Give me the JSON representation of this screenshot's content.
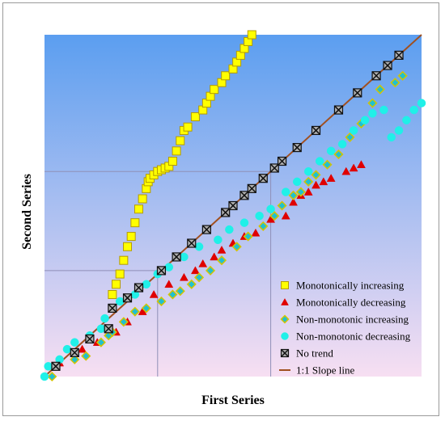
{
  "chart_data": {
    "type": "scatter",
    "xlabel": "First Series",
    "ylabel": "Second Series",
    "xlim": [
      0,
      100
    ],
    "ylim": [
      0,
      100
    ],
    "grid": false,
    "legend_position": "bottom-right",
    "background_gradient": [
      "#5b9ef0",
      "#f7dff2"
    ],
    "reference_lines": {
      "verticals_x": [
        30,
        60
      ],
      "horizontals_y": [
        31,
        60
      ]
    },
    "series": [
      {
        "name": "Monotonically increasing",
        "marker": "square",
        "color": "#ffff00",
        "stroke": "#b59b00",
        "points": [
          [
            18,
            24
          ],
          [
            19,
            27
          ],
          [
            20,
            30
          ],
          [
            21,
            34
          ],
          [
            22,
            38
          ],
          [
            23,
            41
          ],
          [
            24,
            45
          ],
          [
            25,
            49
          ],
          [
            26,
            52
          ],
          [
            27,
            55
          ],
          [
            27.5,
            57
          ],
          [
            28,
            58
          ],
          [
            29,
            59
          ],
          [
            30,
            60
          ],
          [
            31,
            60.5
          ],
          [
            32,
            61
          ],
          [
            33,
            61.5
          ],
          [
            34,
            63
          ],
          [
            35,
            66
          ],
          [
            36,
            69
          ],
          [
            37,
            72
          ],
          [
            38,
            73
          ],
          [
            40,
            76
          ],
          [
            42,
            78
          ],
          [
            43,
            80
          ],
          [
            44,
            82
          ],
          [
            45,
            84
          ],
          [
            47,
            86
          ],
          [
            48,
            88
          ],
          [
            50,
            90
          ],
          [
            51,
            92
          ],
          [
            52,
            94
          ],
          [
            53,
            96
          ],
          [
            54,
            98
          ],
          [
            55,
            100
          ]
        ]
      },
      {
        "name": "Monotonically decreasing",
        "marker": "triangle",
        "color": "#e00000",
        "stroke": "#e00000",
        "points": [
          [
            4,
            4
          ],
          [
            10,
            8
          ],
          [
            14,
            10
          ],
          [
            19,
            13
          ],
          [
            22,
            16
          ],
          [
            26,
            19
          ],
          [
            29,
            24
          ],
          [
            33,
            27
          ],
          [
            37,
            29
          ],
          [
            40,
            31
          ],
          [
            42,
            33
          ],
          [
            45,
            35
          ],
          [
            47,
            37
          ],
          [
            50,
            39
          ],
          [
            53,
            41
          ],
          [
            56,
            42
          ],
          [
            60,
            46
          ],
          [
            64,
            47
          ],
          [
            66,
            51
          ],
          [
            68,
            53
          ],
          [
            70,
            54
          ],
          [
            72,
            56
          ],
          [
            74,
            57
          ],
          [
            76,
            58
          ],
          [
            80,
            60
          ],
          [
            82,
            61
          ],
          [
            84,
            62
          ]
        ]
      },
      {
        "name": "Non-monotonic increasing",
        "marker": "diamond",
        "color": "#20c0d0",
        "stroke": "#d4c400",
        "points": [
          [
            2,
            0
          ],
          [
            8,
            5
          ],
          [
            11,
            6
          ],
          [
            15,
            10
          ],
          [
            17,
            12
          ],
          [
            18,
            13
          ],
          [
            21,
            16
          ],
          [
            24,
            19
          ],
          [
            27,
            20
          ],
          [
            31,
            22
          ],
          [
            34,
            24
          ],
          [
            36,
            25
          ],
          [
            39,
            27
          ],
          [
            41,
            29
          ],
          [
            44,
            31
          ],
          [
            47,
            34
          ],
          [
            51,
            38
          ],
          [
            54,
            41
          ],
          [
            58,
            44
          ],
          [
            61,
            47
          ],
          [
            63,
            50
          ],
          [
            66,
            53
          ],
          [
            68,
            54
          ],
          [
            70,
            57
          ],
          [
            72,
            59
          ],
          [
            75,
            62
          ],
          [
            78,
            65
          ],
          [
            81,
            70
          ],
          [
            84,
            74
          ],
          [
            87,
            80
          ],
          [
            89,
            84
          ],
          [
            93,
            86
          ],
          [
            95,
            88
          ]
        ]
      },
      {
        "name": "Non-monotonic decreasing",
        "marker": "circle",
        "color": "#20f0e8",
        "stroke": "#20f0e8",
        "points": [
          [
            0,
            0
          ],
          [
            1,
            3
          ],
          [
            4,
            5
          ],
          [
            6,
            8
          ],
          [
            8,
            10
          ],
          [
            12,
            12
          ],
          [
            15,
            14
          ],
          [
            16,
            17
          ],
          [
            18,
            20
          ],
          [
            20,
            22
          ],
          [
            24,
            24
          ],
          [
            27,
            27
          ],
          [
            30,
            30
          ],
          [
            33,
            32
          ],
          [
            37,
            35
          ],
          [
            41,
            38
          ],
          [
            46,
            40
          ],
          [
            49,
            43
          ],
          [
            53,
            45
          ],
          [
            57,
            47
          ],
          [
            60,
            49
          ],
          [
            64,
            54
          ],
          [
            67,
            57
          ],
          [
            70,
            60
          ],
          [
            73,
            63
          ],
          [
            76,
            66
          ],
          [
            79,
            68
          ],
          [
            82,
            72
          ],
          [
            85,
            75
          ],
          [
            87,
            77
          ],
          [
            90,
            78
          ],
          [
            92,
            70
          ],
          [
            94,
            72
          ],
          [
            96,
            75
          ],
          [
            98,
            78
          ],
          [
            100,
            80
          ]
        ]
      },
      {
        "name": "No trend",
        "marker": "square-x",
        "color": "#444444",
        "stroke": "#111111",
        "points": [
          [
            3,
            3
          ],
          [
            8,
            7
          ],
          [
            12,
            11
          ],
          [
            17,
            14
          ],
          [
            18,
            20
          ],
          [
            22,
            23
          ],
          [
            25,
            26
          ],
          [
            31,
            31
          ],
          [
            35,
            35
          ],
          [
            39,
            39
          ],
          [
            43,
            43
          ],
          [
            48,
            48
          ],
          [
            50,
            50
          ],
          [
            53,
            53
          ],
          [
            55,
            55
          ],
          [
            58,
            58
          ],
          [
            61,
            61
          ],
          [
            63,
            63
          ],
          [
            67,
            67
          ],
          [
            72,
            72
          ],
          [
            78,
            78
          ],
          [
            83,
            83
          ],
          [
            88,
            88
          ],
          [
            91,
            91
          ],
          [
            94,
            94
          ]
        ]
      }
    ],
    "slope_line": {
      "name": "1:1 Slope line",
      "color": "#a05020",
      "from": [
        0,
        0
      ],
      "to": [
        100,
        100
      ]
    }
  }
}
